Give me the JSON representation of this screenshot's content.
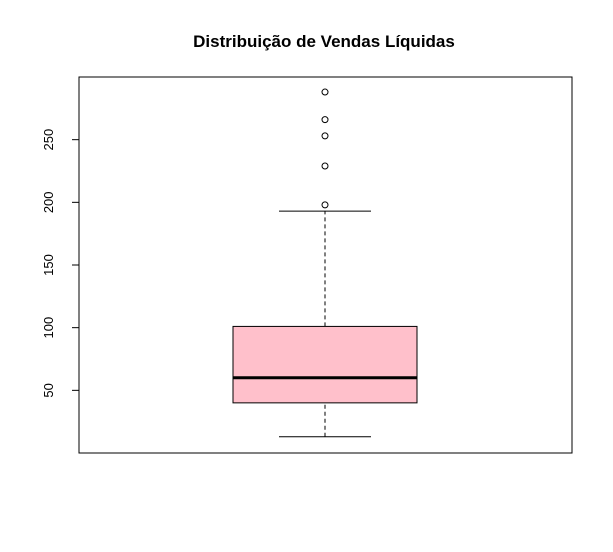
{
  "chart_data": {
    "type": "boxplot",
    "title": "Distribuição de Vendas Líquidas",
    "xlabel": "",
    "ylabel": "",
    "ylim": [
      0,
      300
    ],
    "y_ticks": [
      50,
      100,
      150,
      200,
      250
    ],
    "grid": false,
    "legend": "none",
    "box": {
      "whisker_low": 13,
      "q1": 40,
      "median": 60,
      "q3": 101,
      "whisker_high": 193,
      "fill_color": "#ffc0cb"
    },
    "outliers": [
      198,
      229,
      253,
      266,
      288
    ]
  }
}
